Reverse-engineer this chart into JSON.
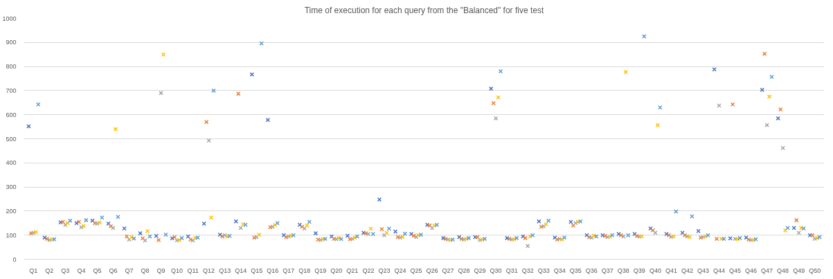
{
  "chart_data": {
    "type": "scatter",
    "title": "Time of execution for each query from the \"Balanced\" for five test",
    "categories": [
      "Q1",
      "Q2",
      "Q3",
      "Q4",
      "Q5",
      "Q6",
      "Q7",
      "Q8",
      "Q9",
      "Q10",
      "Q11",
      "Q12",
      "Q13",
      "Q14",
      "Q15",
      "Q16",
      "Q17",
      "Q18",
      "Q19",
      "Q20",
      "Q21",
      "Q22",
      "Q23",
      "Q24",
      "Q25",
      "Q26",
      "Q27",
      "Q28",
      "Q29",
      "Q30",
      "Q31",
      "Q32",
      "Q33",
      "Q34",
      "Q35",
      "Q36",
      "Q37",
      "Q38",
      "Q39",
      "Q40",
      "Q41",
      "Q42",
      "Q43",
      "Q44",
      "Q45",
      "Q46",
      "Q47",
      "Q48",
      "Q49",
      "Q50"
    ],
    "series": [
      {
        "color": "#4472c4",
        "values": [
          552,
          90,
          153,
          150,
          160,
          148,
          128,
          108,
          97,
          87,
          95,
          148,
          102,
          157,
          767,
          578,
          100,
          143,
          108,
          95,
          98,
          110,
          248,
          115,
          105,
          143,
          88,
          92,
          92,
          708,
          88,
          95,
          157,
          90,
          155,
          100,
          100,
          105,
          105,
          128,
          105,
          110,
          117,
          788,
          87,
          90,
          703,
          585,
          130,
          100
        ]
      },
      {
        "color": "#ed7d31",
        "values": [
          108,
          85,
          155,
          155,
          150,
          137,
          95,
          87,
          80,
          92,
          82,
          570,
          95,
          687,
          90,
          133,
          92,
          135,
          82,
          85,
          83,
          108,
          125,
          92,
          98,
          140,
          85,
          85,
          92,
          648,
          85,
          88,
          135,
          82,
          140,
          92,
          97,
          100,
          97,
          120,
          100,
          100,
          90,
          85,
          643,
          82,
          853,
          622,
          162,
          100
        ]
      },
      {
        "color": "#a5a5a5",
        "values": [
          110,
          80,
          143,
          133,
          148,
          130,
          82,
          78,
          690,
          78,
          78,
          493,
          100,
          130,
          92,
          135,
          95,
          128,
          80,
          83,
          85,
          105,
          100,
          90,
          93,
          130,
          82,
          82,
          80,
          585,
          82,
          55,
          137,
          85,
          150,
          90,
          92,
          95,
          94,
          110,
          93,
          95,
          92,
          638,
          85,
          80,
          557,
          462,
          110,
          85
        ]
      },
      {
        "color": "#ffc000",
        "values": [
          113,
          82,
          150,
          138,
          152,
          540,
          92,
          117,
          850,
          80,
          88,
          173,
          95,
          145,
          102,
          142,
          98,
          140,
          83,
          88,
          90,
          127,
          110,
          93,
          100,
          140,
          80,
          85,
          82,
          672,
          83,
          95,
          145,
          82,
          155,
          98,
          94,
          777,
          95,
          557,
          95,
          93,
          95,
          85,
          83,
          80,
          675,
          120,
          130,
          88
        ]
      },
      {
        "color": "#5b9bd5",
        "values": [
          643,
          83,
          160,
          162,
          173,
          176,
          86,
          95,
          102,
          88,
          90,
          700,
          97,
          143,
          896,
          150,
          100,
          155,
          85,
          84,
          95,
          105,
          127,
          106,
          102,
          143,
          82,
          88,
          85,
          780,
          88,
          100,
          160,
          90,
          157,
          95,
          100,
          100,
          925,
          630,
          198,
          178,
          100,
          85,
          88,
          83,
          757,
          130,
          128,
          92
        ]
      }
    ],
    "ylim": [
      0,
      1000
    ],
    "yticks": [
      0,
      100,
      200,
      300,
      400,
      500,
      600,
      700,
      800,
      900,
      1000
    ],
    "grid": "y",
    "marker": "cross"
  }
}
